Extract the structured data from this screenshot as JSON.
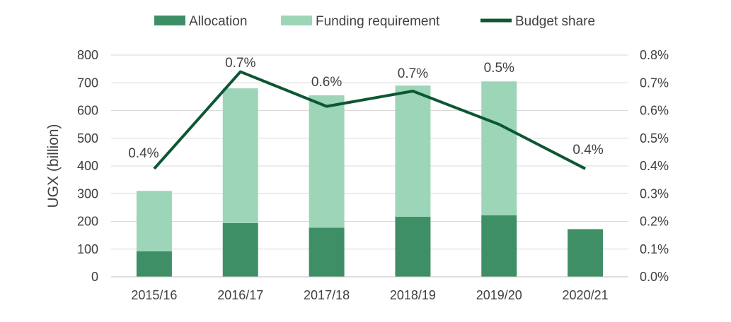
{
  "chart_data": {
    "type": "bar",
    "categories": [
      "2015/16",
      "2016/17",
      "2017/18",
      "2018/19",
      "2019/20",
      "2020/21"
    ],
    "series": [
      {
        "name": "Allocation",
        "kind": "bar",
        "stack": "total",
        "axis": "left",
        "color": "#3f8f66",
        "values": [
          92,
          194,
          177,
          217,
          222,
          172
        ]
      },
      {
        "name": "Funding requirement",
        "kind": "bar",
        "stack": "total",
        "axis": "left",
        "color": "#9dd5b8",
        "values": [
          218,
          486,
          478,
          473,
          483,
          null
        ]
      },
      {
        "name": "Budget share",
        "kind": "line",
        "axis": "right",
        "color": "#0d5733",
        "values": [
          0.39,
          0.74,
          0.615,
          0.67,
          0.55,
          0.39
        ]
      }
    ],
    "data_labels": [
      "0.4%",
      "0.7%",
      "0.6%",
      "0.7%",
      "0.5%",
      "0.4%"
    ],
    "ylabel": "UGX (billion)",
    "ylim": [
      0,
      800
    ],
    "yticks": [
      "0",
      "100",
      "200",
      "300",
      "400",
      "500",
      "600",
      "700",
      "800"
    ],
    "y2lim": [
      0,
      0.8
    ],
    "y2ticks": [
      "0.0%",
      "0.1%",
      "0.2%",
      "0.3%",
      "0.4%",
      "0.5%",
      "0.6%",
      "0.7%",
      "0.8%"
    ],
    "grid": true,
    "legend": "top-center"
  }
}
